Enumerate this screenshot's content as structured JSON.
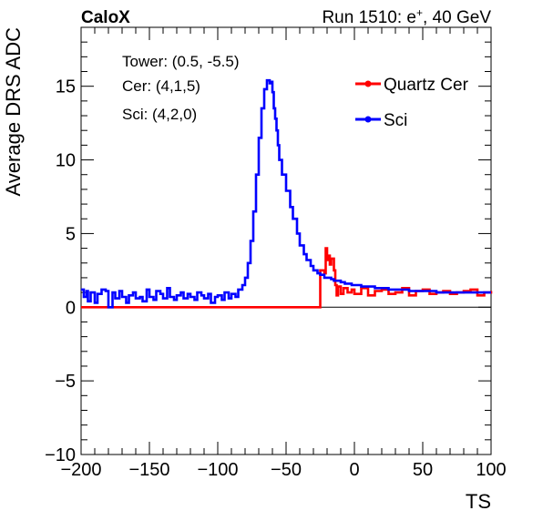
{
  "chart_data": {
    "type": "line",
    "header_left": "CaloX",
    "header_right_prefix": "Run 1510: e",
    "header_right_sup": "+",
    "header_right_suffix": ", 40 GeV",
    "xlabel": "TS",
    "ylabel": "Average DRS ADC",
    "xlim": [
      -200,
      100
    ],
    "ylim": [
      -10,
      19
    ],
    "x_ticks": [
      -200,
      -150,
      -100,
      -50,
      0,
      50,
      100
    ],
    "x_tick_labels": [
      "−200",
      "−150",
      "−100",
      "−50",
      "0",
      "50",
      "100"
    ],
    "y_ticks": [
      -10,
      -5,
      0,
      5,
      10,
      15
    ],
    "y_tick_labels": [
      "−10",
      "−5",
      "0",
      "5",
      "10",
      "15"
    ],
    "zero_line": true,
    "annotations": [
      "Tower: (0.5, -5.5)",
      "Cer: (4,1,5)",
      "Sci: (4,2,0)"
    ],
    "legend": {
      "placement": "top-right",
      "entries": [
        {
          "name": "Quartz Cer",
          "color": "#ff0000"
        },
        {
          "name": "Sci",
          "color": "#0000ff"
        }
      ]
    },
    "series": [
      {
        "name": "Quartz Cer",
        "color": "#ff0000",
        "x": [
          -200,
          -26,
          -25,
          -22,
          -21,
          -20,
          -19,
          -18,
          -17,
          -15,
          -14,
          -13,
          -12,
          -10,
          -8,
          -5,
          -2,
          0,
          5,
          10,
          15,
          20,
          25,
          30,
          35,
          40,
          45,
          50,
          55,
          60,
          65,
          70,
          75,
          80,
          85,
          90,
          95,
          100
        ],
        "y": [
          0,
          0,
          2.5,
          2.3,
          4.0,
          3.2,
          3.5,
          2.9,
          3.3,
          2.5,
          1.5,
          0.8,
          1.4,
          0.9,
          1.3,
          1.0,
          1.2,
          0.9,
          1.3,
          0.8,
          1.1,
          1.2,
          0.9,
          1.0,
          1.3,
          0.8,
          1.1,
          1.2,
          0.9,
          1.0,
          1.1,
          0.9,
          1.0,
          1.1,
          1.2,
          0.8,
          1.0,
          1.1
        ]
      },
      {
        "name": "Sci",
        "color": "#0000ff",
        "x": [
          -200,
          -198,
          -196,
          -195,
          -193,
          -190,
          -188,
          -185,
          -182,
          -180,
          -177,
          -175,
          -172,
          -170,
          -167,
          -165,
          -162,
          -160,
          -157,
          -155,
          -152,
          -150,
          -147,
          -145,
          -142,
          -140,
          -137,
          -135,
          -132,
          -130,
          -127,
          -125,
          -122,
          -120,
          -117,
          -115,
          -112,
          -110,
          -107,
          -105,
          -102,
          -100,
          -97,
          -95,
          -92,
          -90,
          -87,
          -85,
          -82,
          -80,
          -78,
          -76,
          -74,
          -72,
          -70,
          -68,
          -66,
          -64,
          -62,
          -61,
          -60,
          -59,
          -58,
          -57,
          -56,
          -55,
          -53,
          -50,
          -47,
          -45,
          -42,
          -40,
          -37,
          -35,
          -32,
          -30,
          -27,
          -25,
          -22,
          -20,
          -17,
          -15,
          -12,
          -10,
          -7,
          -5,
          -2,
          0,
          5,
          10,
          15,
          20,
          25,
          30,
          35,
          40,
          45,
          50,
          55,
          60,
          65,
          70,
          75,
          80,
          85,
          90,
          95,
          100
        ],
        "y": [
          1.2,
          0.7,
          1.1,
          0.4,
          1.0,
          0.3,
          0.9,
          1.2,
          1.1,
          0.0,
          1.0,
          0.6,
          1.1,
          0.7,
          0.3,
          0.8,
          1.0,
          0.6,
          0.7,
          0.4,
          1.2,
          0.7,
          0.5,
          1.1,
          0.9,
          0.6,
          1.3,
          0.7,
          0.5,
          0.8,
          1.0,
          0.6,
          0.9,
          0.7,
          0.5,
          1.0,
          0.8,
          0.6,
          0.9,
          0.3,
          0.7,
          0.8,
          0.5,
          1.0,
          0.6,
          0.9,
          0.7,
          1.2,
          1.5,
          2.0,
          3.0,
          4.5,
          6.5,
          9.0,
          11.5,
          13.5,
          14.8,
          15.4,
          15.2,
          15.3,
          14.6,
          13.5,
          12.8,
          12.0,
          11.0,
          10.0,
          9.0,
          7.9,
          6.8,
          6.0,
          5.0,
          4.2,
          3.6,
          3.2,
          2.8,
          2.5,
          2.3,
          2.2,
          2.0,
          2.0,
          1.9,
          1.8,
          1.8,
          1.7,
          1.6,
          1.6,
          1.5,
          1.5,
          1.4,
          1.4,
          1.3,
          1.3,
          1.2,
          1.2,
          1.2,
          1.1,
          1.1,
          1.1,
          1.1,
          1.0,
          1.0,
          1.0,
          1.0,
          1.0,
          1.0,
          1.0,
          1.0,
          1.0
        ]
      }
    ]
  }
}
